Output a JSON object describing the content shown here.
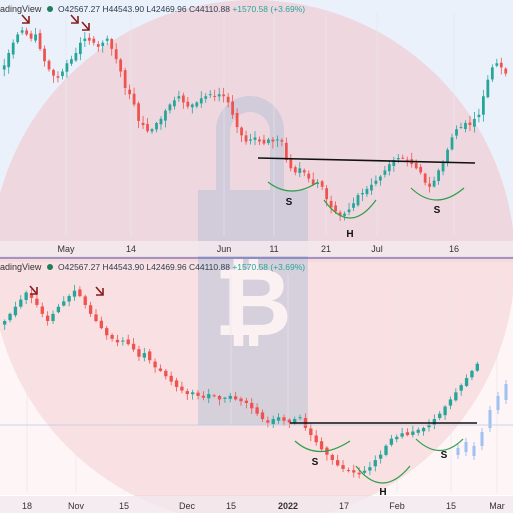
{
  "charts": [
    {
      "brand": "adingView",
      "open": "O42567.27",
      "high": "H44543.90",
      "low": "L42469.96",
      "close": "C44110.88",
      "change": "+1570.58 (+3.69%)",
      "x_ticks": [
        "May",
        "14",
        "Jun",
        "11",
        "21",
        "Jul",
        "16"
      ],
      "pattern_labels": [
        "S",
        "H",
        "S"
      ]
    },
    {
      "brand": "adingView",
      "open": "O42567.27",
      "high": "H44543.90",
      "low": "L42469.96",
      "close": "C44110.88",
      "change": "+1570.58 (+3.69%)",
      "x_ticks": [
        "18",
        "Nov",
        "15",
        "Dec",
        "15",
        "2022",
        "17",
        "Feb",
        "15",
        "Mar"
      ],
      "pattern_labels": [
        "S",
        "H",
        "S"
      ]
    }
  ],
  "chart_data": [
    {
      "type": "candlestick",
      "pattern": "head-and-shoulders-bottom",
      "x_ticks": [
        "May",
        "14",
        "Jun",
        "11",
        "21",
        "Jul",
        "16"
      ],
      "annotations": [
        "S",
        "H",
        "S"
      ],
      "close_path": [
        55,
        61,
        66,
        70,
        72,
        70,
        68,
        70,
        63,
        57,
        53,
        50,
        49,
        52,
        56,
        58,
        61,
        66,
        68,
        67,
        66,
        64,
        66,
        68,
        63,
        58,
        52,
        44,
        41,
        36,
        28,
        26,
        23,
        24,
        27,
        29,
        33,
        36,
        38,
        40,
        37,
        35,
        36,
        37,
        39,
        40,
        41,
        40,
        41,
        40,
        37,
        31,
        25,
        21,
        18,
        19,
        20,
        18,
        17,
        19,
        18,
        19,
        18,
        9,
        5,
        3,
        5,
        3,
        0,
        -3,
        -2,
        -4,
        -10,
        -14,
        -16,
        -18,
        -17,
        -15,
        -12,
        -8,
        -7,
        -5,
        -3,
        -1,
        1,
        4,
        7,
        9,
        10,
        10,
        9,
        7,
        5,
        3,
        -2,
        -4,
        -1,
        4,
        8,
        14,
        20,
        24,
        25,
        27,
        26,
        29,
        31,
        40,
        48,
        54,
        56,
        54,
        51
      ]
    },
    {
      "type": "candlestick",
      "pattern": "head-and-shoulders-bottom",
      "x_ticks": [
        "18",
        "Nov",
        "15",
        "Dec",
        "15",
        "2022",
        "17",
        "Feb",
        "15",
        "Mar"
      ],
      "annotations": [
        "S",
        "H",
        "S"
      ],
      "close_path": [
        58,
        62,
        66,
        70,
        74,
        71,
        67,
        62,
        58,
        62,
        66,
        69,
        72,
        75,
        72,
        67,
        62,
        58,
        54,
        50,
        48,
        46,
        47,
        45,
        42,
        38,
        40,
        36,
        32,
        30,
        27,
        24,
        21,
        19,
        17,
        18,
        16,
        15,
        17,
        16,
        14,
        15,
        16,
        14,
        13,
        12,
        9,
        6,
        3,
        1,
        3,
        4,
        2,
        1,
        3,
        4,
        -2,
        -6,
        -10,
        -14,
        -17,
        -20,
        -23,
        -25,
        -26,
        -27,
        -28,
        -26,
        -24,
        -20,
        -17,
        -12,
        -8,
        -7,
        -5,
        -6,
        -4,
        -3,
        -2,
        0,
        3,
        6,
        10,
        14,
        18,
        22,
        26,
        30,
        34
      ]
    }
  ]
}
